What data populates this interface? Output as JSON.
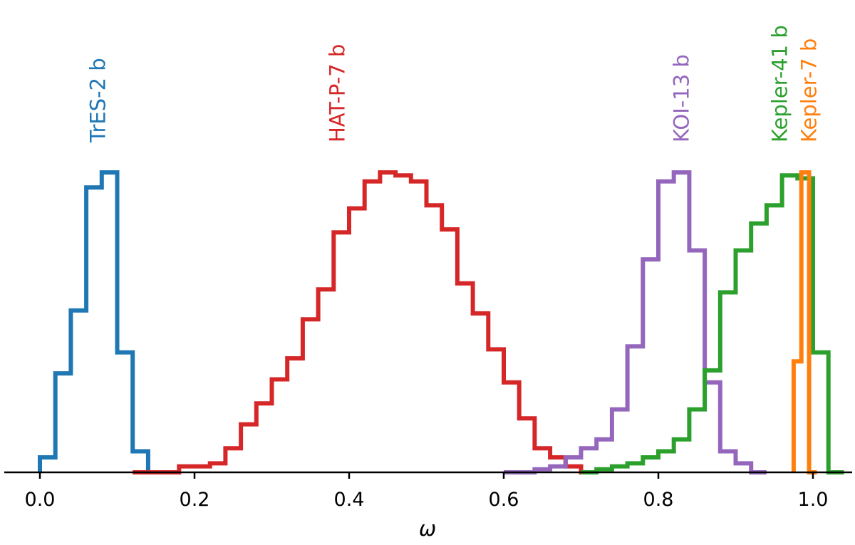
{
  "chart_data": {
    "type": "histogram",
    "title": "",
    "xlabel": "ω",
    "ylabel": "",
    "xlim": [
      -0.05,
      1.05
    ],
    "xticks": [
      "0.0",
      "0.2",
      "0.4",
      "0.6",
      "0.8",
      "1.0"
    ],
    "grid": false,
    "bin_width": 0.02,
    "series": [
      {
        "name": "TrES-2 b",
        "color": "#1f77b4",
        "bin_start": 0.0,
        "values": [
          0.05,
          0.33,
          0.54,
          0.95,
          1.0,
          0.4,
          0.07,
          0.0
        ]
      },
      {
        "name": "HAT-P-7 b",
        "color": "#d62728",
        "bin_start": 0.12,
        "values": [
          0.0,
          0.0,
          0.0,
          0.02,
          0.02,
          0.03,
          0.08,
          0.16,
          0.23,
          0.31,
          0.38,
          0.51,
          0.61,
          0.8,
          0.88,
          0.97,
          1.0,
          0.99,
          0.97,
          0.89,
          0.81,
          0.63,
          0.53,
          0.41,
          0.3,
          0.18,
          0.08,
          0.05,
          0.02,
          0.0
        ]
      },
      {
        "name": "KOI-13 b",
        "color": "#9467bd",
        "bin_start": 0.6,
        "values": [
          0.0,
          0.0,
          0.01,
          0.02,
          0.05,
          0.08,
          0.11,
          0.21,
          0.42,
          0.71,
          0.97,
          1.0,
          0.74,
          0.3,
          0.07,
          0.03,
          0.0
        ]
      },
      {
        "name": "Kepler-41 b",
        "color": "#2ca02c",
        "bin_start": 0.7,
        "values": [
          0.0,
          0.01,
          0.02,
          0.03,
          0.05,
          0.07,
          0.11,
          0.21,
          0.34,
          0.6,
          0.74,
          0.83,
          0.89,
          0.99,
          0.98,
          0.4,
          0.0
        ]
      },
      {
        "name": "Kepler-7 b",
        "color": "#ff7f0e",
        "bin_start": 0.975,
        "bin_width": 0.01,
        "values": [
          0.37,
          1.0,
          0.0
        ]
      }
    ]
  }
}
